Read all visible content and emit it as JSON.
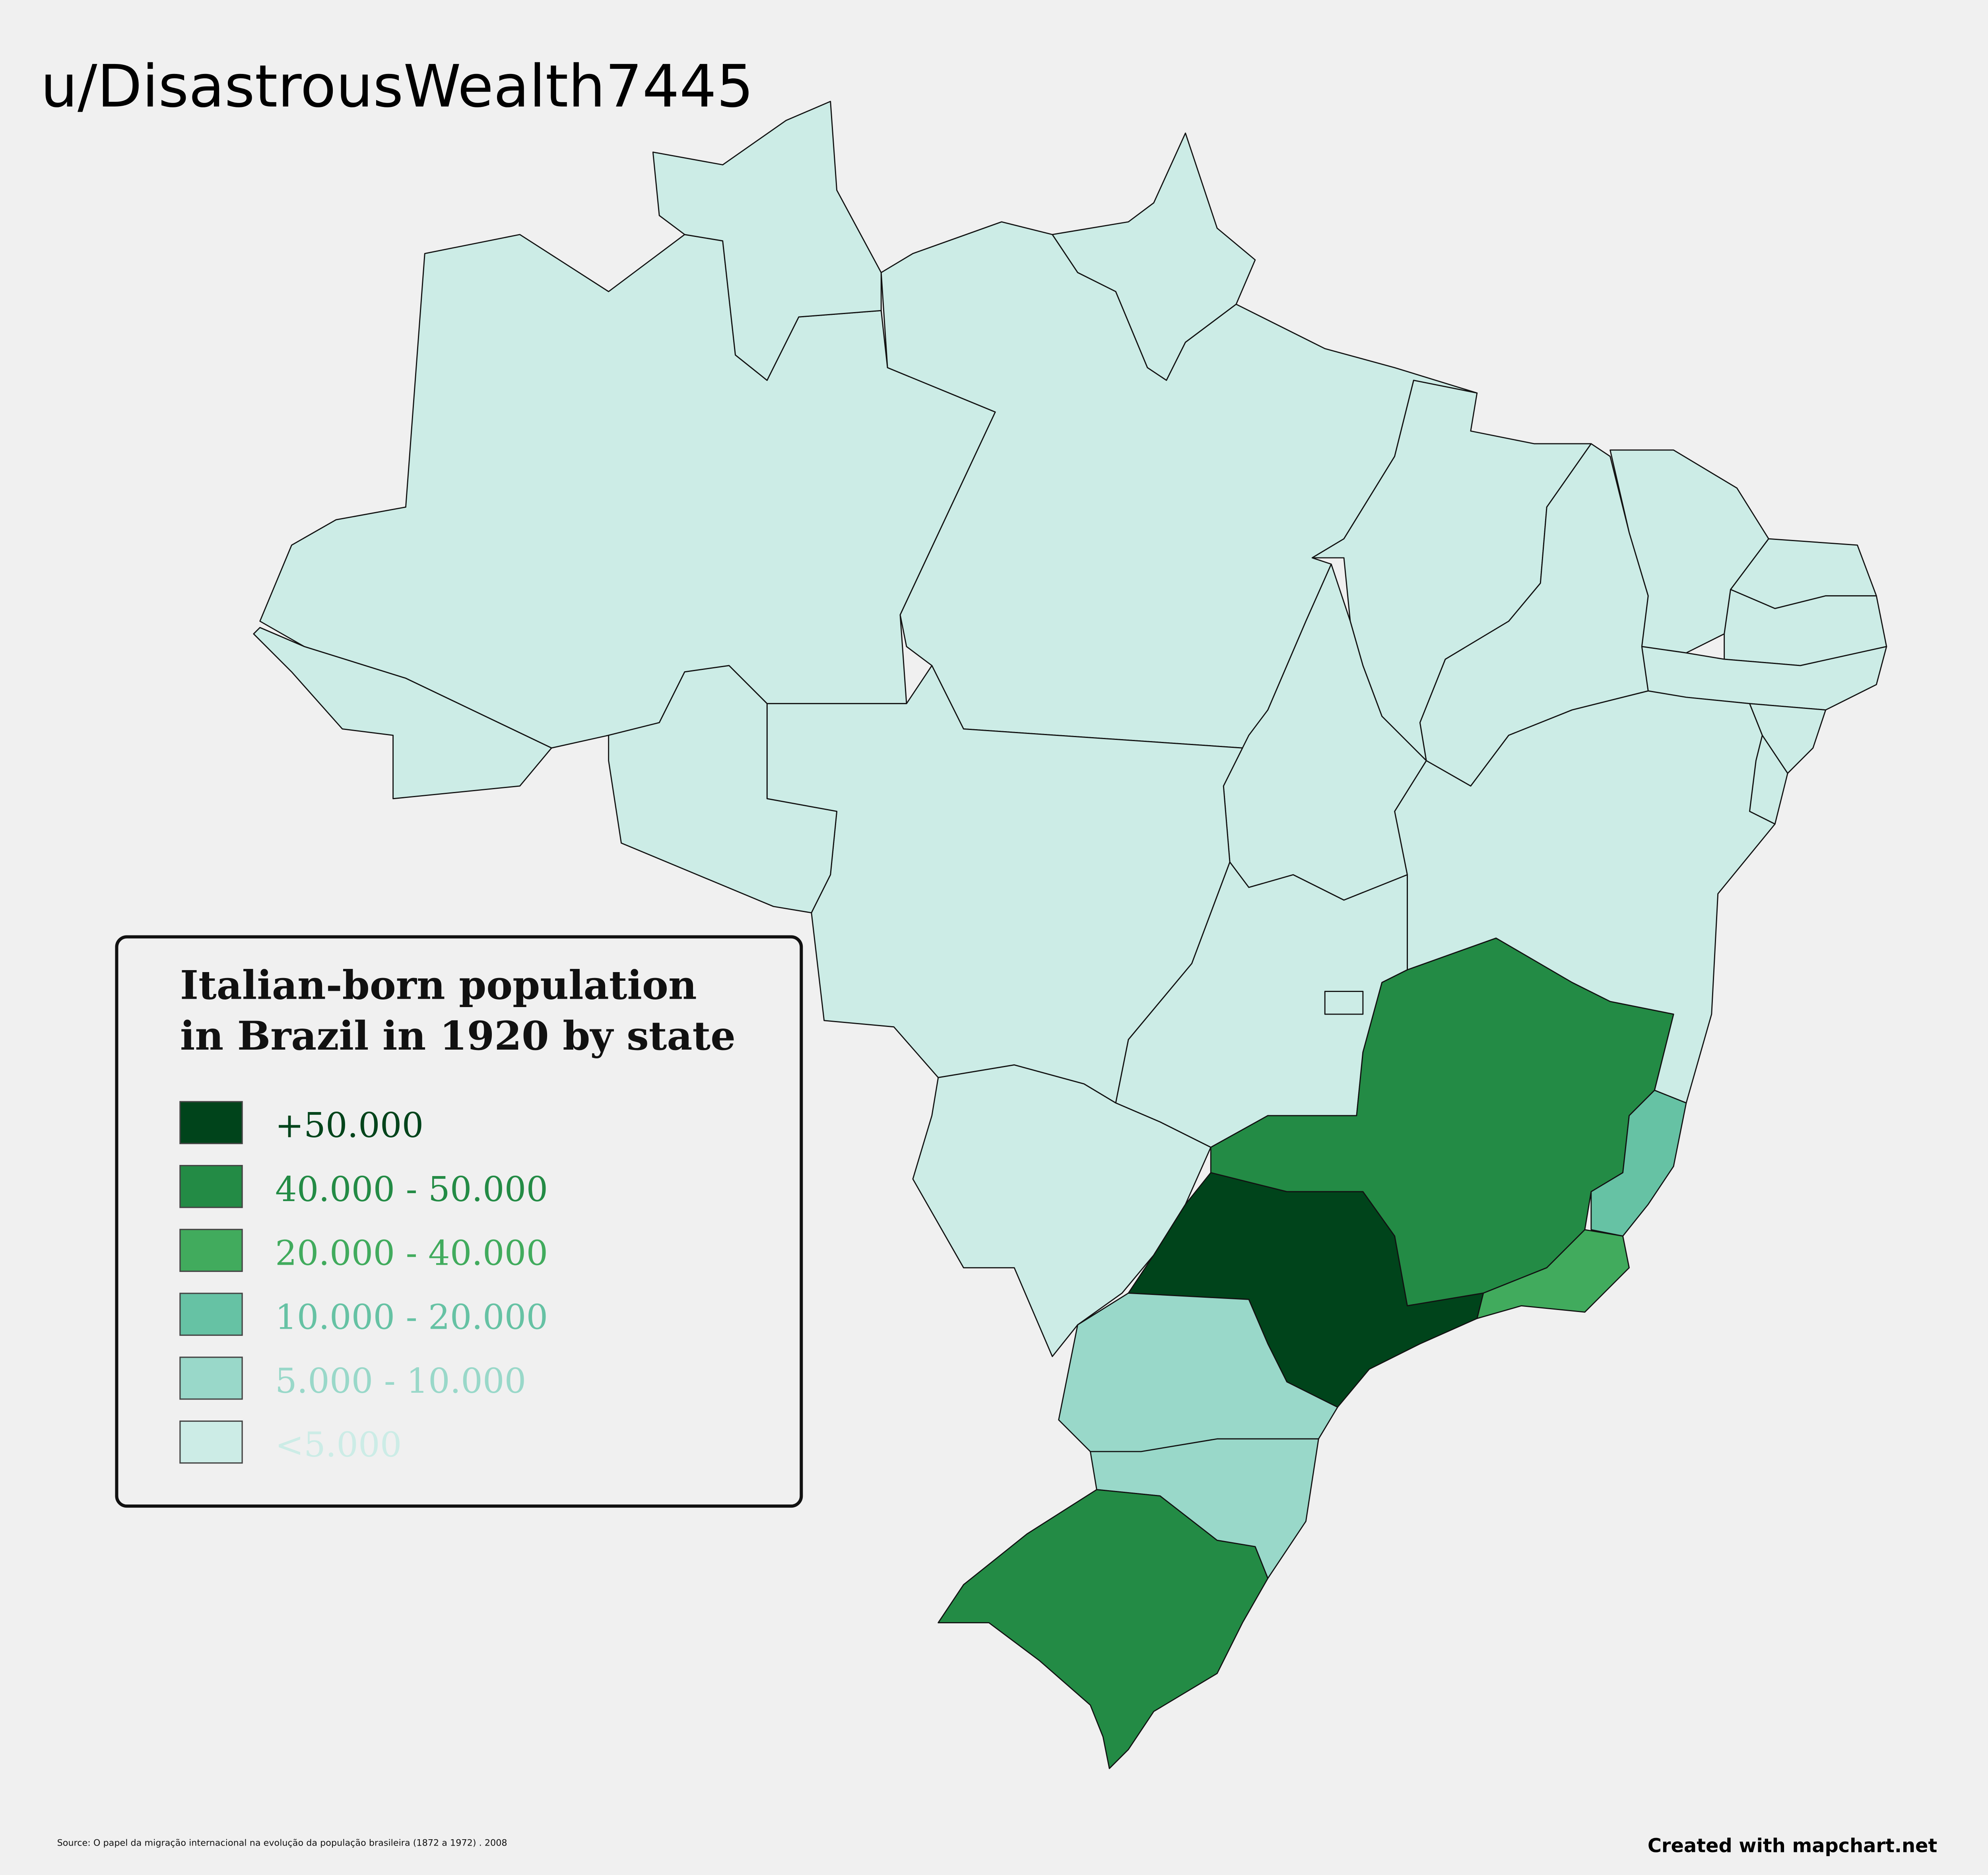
{
  "header": {
    "title": "u/DisastrousWealth7445"
  },
  "legend": {
    "title": [
      "Italian-born population",
      "in Brazil in 1920 by state"
    ],
    "items": [
      {
        "label": "+50.000",
        "color": "#00441b"
      },
      {
        "label": "40.000 - 50.000",
        "color": "#238b45"
      },
      {
        "label": "20.000 - 40.000",
        "color": "#41ab5d"
      },
      {
        "label": "10.000 - 20.000",
        "color": "#66c2a4"
      },
      {
        "label": "5.000 - 10.000",
        "color": "#99d8c9"
      },
      {
        "label": "<5.000",
        "color": "#ccece6"
      }
    ]
  },
  "footer": {
    "source": "Source: O papel da migração internacional na evolução da população brasileira (1872 a 1972) . 2008",
    "credit": "Created with mapchart.net"
  }
}
